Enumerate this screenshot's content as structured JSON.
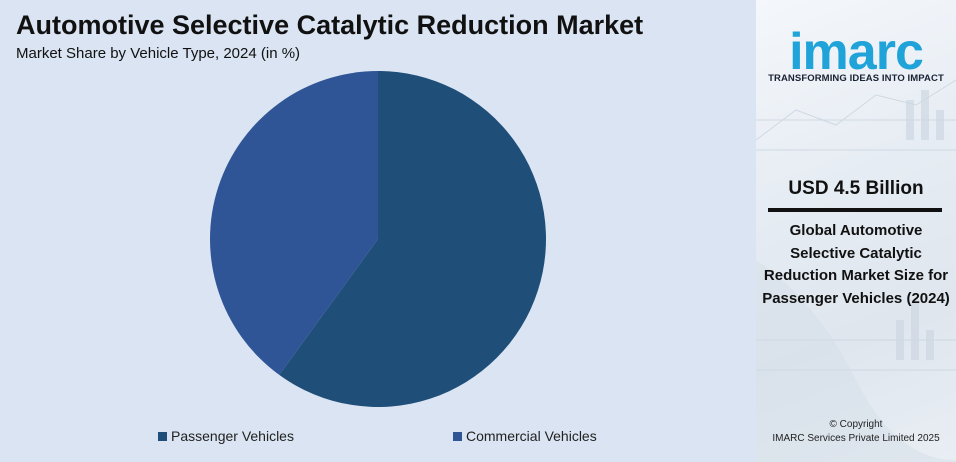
{
  "header": {
    "title": "Automotive Selective Catalytic Reduction Market",
    "subtitle": "Market Share by Vehicle Type, 2024 (in %)"
  },
  "chart_data": {
    "type": "pie",
    "title": "Automotive Selective Catalytic Reduction Market",
    "subtitle": "Market Share by Vehicle Type, 2024 (in %)",
    "categories": [
      "Passenger Vehicles",
      "Commercial Vehicles"
    ],
    "values": [
      60,
      40
    ],
    "colors": [
      "#1f4e79",
      "#2f5597"
    ],
    "legend_position": "bottom",
    "data_labels": false
  },
  "sidebar": {
    "logo_text": "imarc",
    "tagline": "TRANSFORMING IDEAS INTO IMPACT",
    "stat_value": "USD 4.5 Billion",
    "stat_description": "Global Automotive Selective Catalytic Reduction Market Size for Passenger Vehicles (2024)",
    "copyright_line1": "© Copyright",
    "copyright_line2": "IMARC Services Private Limited 2025",
    "logo_color": "#1fa3d8"
  }
}
